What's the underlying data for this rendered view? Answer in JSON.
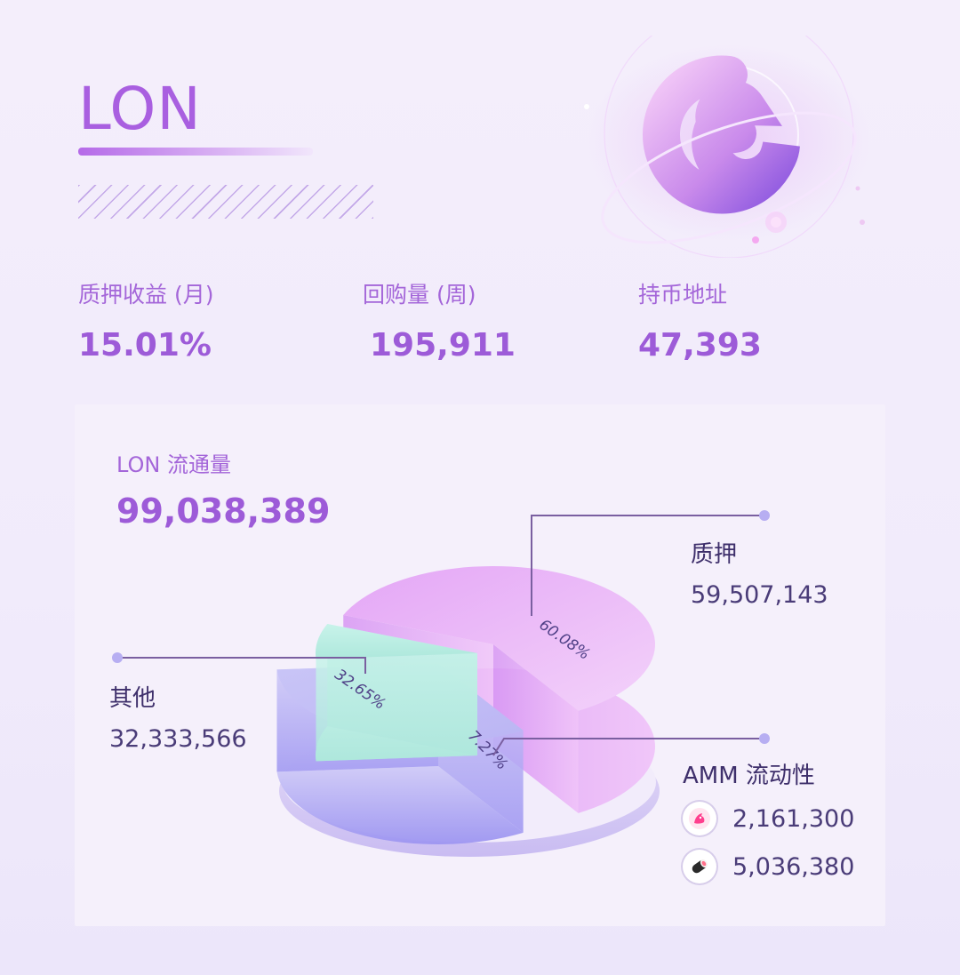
{
  "header": {
    "title": "LON"
  },
  "stats": [
    {
      "label": "质押收益 (月)",
      "value": "15.01%"
    },
    {
      "label": "回购量 (周)",
      "value": "195,911"
    },
    {
      "label": "持币地址",
      "value": "47,393"
    }
  ],
  "circulation": {
    "label": "LON 流通量",
    "value": "99,038,389"
  },
  "legend": {
    "staking": {
      "title": "质押",
      "value": "59,507,143"
    },
    "other": {
      "title": "其他",
      "value": "32,333,566"
    },
    "amm": {
      "title": "AMM 流动性",
      "uniswap": "2,161,300",
      "sushiswap": "5,036,380"
    }
  },
  "colors": {
    "accent": "#9d5bd8",
    "staking": "#e4a8f4",
    "other": "#a9a4f4",
    "amm": "#bff0e6"
  },
  "icons": {
    "brand": "lon-planet-logo",
    "uniswap": "unicorn-icon",
    "sushiswap": "sushi-icon"
  },
  "chart_data": {
    "type": "pie",
    "categories": [
      "质押",
      "其他",
      "AMM 流动性"
    ],
    "values": [
      59507143,
      32333566,
      7197680
    ],
    "percent_labels": [
      "60.08%",
      "32.65%",
      "7.27%"
    ]
  }
}
